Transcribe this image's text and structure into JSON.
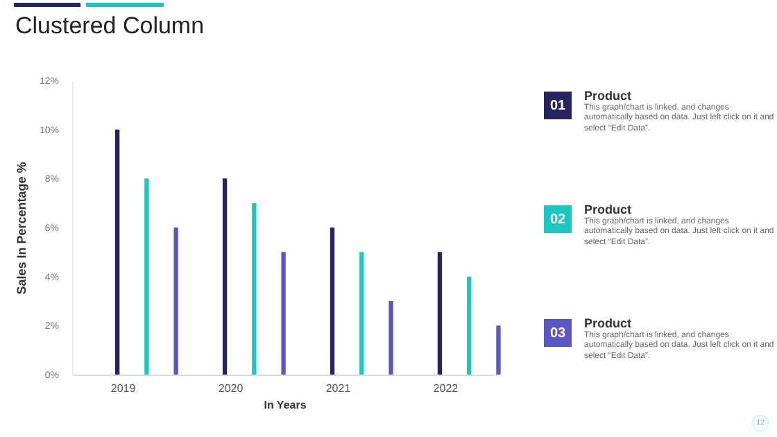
{
  "chart_data": [
    {
      "type": "bar",
      "title": "Clustered Column",
      "xlabel": "In Years",
      "ylabel": "Sales In Percentage %",
      "categories": [
        "2019",
        "2020",
        "2021",
        "2022"
      ],
      "series": [
        {
          "color": "#26245e",
          "values": [
            10,
            8,
            6,
            5
          ]
        },
        {
          "color": "#1cc7c1",
          "values": [
            8,
            7,
            5,
            4
          ]
        },
        {
          "color": "#5b57c2",
          "values": [
            6,
            5,
            3,
            2
          ]
        }
      ],
      "ylim": [
        0,
        12
      ],
      "yticks": [
        {
          "value": 0,
          "label": "0%"
        },
        {
          "value": 2,
          "label": "2%"
        },
        {
          "value": 4,
          "label": "4%"
        },
        {
          "value": 6,
          "label": "6%"
        },
        {
          "value": 8,
          "label": "8%"
        },
        {
          "value": 10,
          "label": "10%"
        },
        {
          "value": 12,
          "label": "12%"
        }
      ]
    },
    {
      "type": "other",
      "annotations": [
        "01",
        "Product",
        "This graph/chart is linked, and changes automatically based on data. Just left click on it and select “Edit Data”.",
        "02",
        "Product",
        "This graph/chart is linked, and changes automatically based on data. Just left click on it and select “Edit Data”.",
        "03",
        "Product",
        "This graph/chart is linked, and changes automatically based on data. Just left click on it and select “Edit Data”.",
        "12"
      ]
    }
  ]
}
